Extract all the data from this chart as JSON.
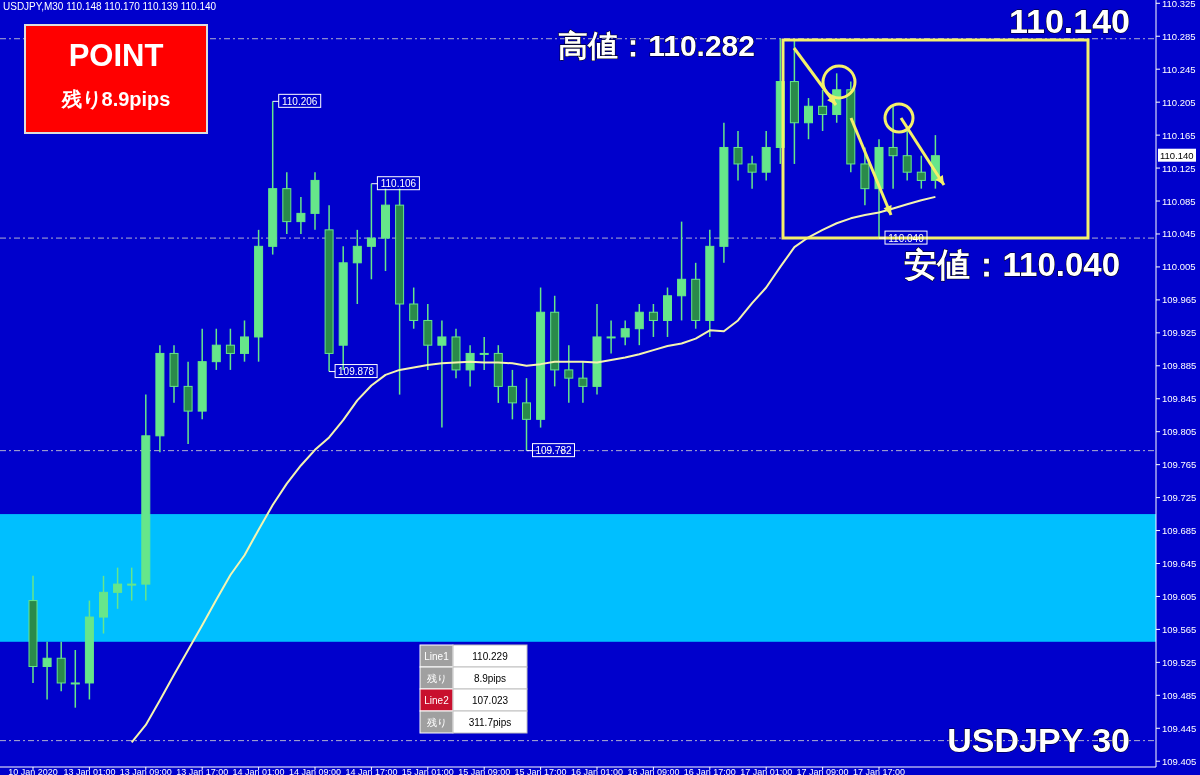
{
  "chart_data": {
    "type": "candlestick",
    "title": "USDJPY,M30  110.148 110.170 110.139 110.140",
    "categories": [
      "10 Jan 2020",
      null,
      null,
      null,
      "13 Jan 01:00",
      null,
      null,
      null,
      "13 Jan 09:00",
      null,
      null,
      null,
      "13 Jan 17:00",
      null,
      null,
      null,
      "14 Jan 01:00",
      null,
      null,
      null,
      "14 Jan 09:00",
      null,
      null,
      null,
      "14 Jan 17:00",
      null,
      null,
      null,
      "15 Jan 01:00",
      null,
      null,
      null,
      "15 Jan 09:00",
      null,
      null,
      null,
      "15 Jan 17:00",
      null,
      null,
      null,
      "16 Jan 01:00",
      null,
      null,
      null,
      "16 Jan 09:00",
      null,
      null,
      null,
      "16 Jan 17:00",
      null,
      null,
      null,
      "17 Jan 01:00",
      null,
      null,
      null,
      "17 Jan 09:00",
      null,
      null,
      null,
      "17 Jan 17:00",
      null,
      null,
      null,
      null
    ],
    "series": [
      {
        "color": "#66e68a",
        "ohlc": [
          [
            109.6,
            109.63,
            109.5,
            109.52
          ],
          [
            109.52,
            109.55,
            109.48,
            109.53
          ],
          [
            109.53,
            109.55,
            109.49,
            109.5
          ],
          [
            109.5,
            109.54,
            109.47,
            109.5
          ],
          [
            109.5,
            109.6,
            109.48,
            109.58
          ],
          [
            109.58,
            109.63,
            109.56,
            109.61
          ],
          [
            109.61,
            109.64,
            109.59,
            109.62
          ],
          [
            109.62,
            109.64,
            109.6,
            109.62
          ],
          [
            109.62,
            109.85,
            109.6,
            109.8
          ],
          [
            109.8,
            109.91,
            109.78,
            109.9
          ],
          [
            109.9,
            109.91,
            109.84,
            109.86
          ],
          [
            109.86,
            109.89,
            109.79,
            109.83
          ],
          [
            109.83,
            109.93,
            109.82,
            109.89
          ],
          [
            109.89,
            109.93,
            109.88,
            109.91
          ],
          [
            109.91,
            109.93,
            109.88,
            109.9
          ],
          [
            109.9,
            109.94,
            109.89,
            109.92
          ],
          [
            109.92,
            110.05,
            109.89,
            110.03
          ],
          [
            110.03,
            110.206,
            110.02,
            110.1
          ],
          [
            110.1,
            110.12,
            110.045,
            110.06
          ],
          [
            110.06,
            110.09,
            110.045,
            110.07
          ],
          [
            110.07,
            110.12,
            110.05,
            110.11
          ],
          [
            110.05,
            110.08,
            109.878,
            109.9
          ],
          [
            109.91,
            110.03,
            109.88,
            110.01
          ],
          [
            110.01,
            110.05,
            109.96,
            110.03
          ],
          [
            110.03,
            110.106,
            109.99,
            110.04
          ],
          [
            110.04,
            110.1,
            110.0,
            110.08
          ],
          [
            110.08,
            110.1,
            109.85,
            109.96
          ],
          [
            109.96,
            109.98,
            109.93,
            109.94
          ],
          [
            109.94,
            109.96,
            109.88,
            109.91
          ],
          [
            109.91,
            109.94,
            109.81,
            109.92
          ],
          [
            109.92,
            109.93,
            109.87,
            109.88
          ],
          [
            109.88,
            109.91,
            109.86,
            109.9
          ],
          [
            109.9,
            109.92,
            109.88,
            109.9
          ],
          [
            109.9,
            109.91,
            109.84,
            109.86
          ],
          [
            109.86,
            109.88,
            109.82,
            109.84
          ],
          [
            109.84,
            109.87,
            109.782,
            109.82
          ],
          [
            109.82,
            109.98,
            109.81,
            109.95
          ],
          [
            109.95,
            109.97,
            109.86,
            109.88
          ],
          [
            109.88,
            109.91,
            109.84,
            109.87
          ],
          [
            109.87,
            109.89,
            109.84,
            109.86
          ],
          [
            109.86,
            109.96,
            109.85,
            109.92
          ],
          [
            109.92,
            109.94,
            109.9,
            109.92
          ],
          [
            109.92,
            109.94,
            109.91,
            109.93
          ],
          [
            109.93,
            109.96,
            109.91,
            109.95
          ],
          [
            109.95,
            109.96,
            109.92,
            109.94
          ],
          [
            109.94,
            109.98,
            109.92,
            109.97
          ],
          [
            109.97,
            110.06,
            109.94,
            109.99
          ],
          [
            109.99,
            110.01,
            109.93,
            109.94
          ],
          [
            109.94,
            110.05,
            109.92,
            110.03
          ],
          [
            110.03,
            110.18,
            110.01,
            110.15
          ],
          [
            110.15,
            110.17,
            110.11,
            110.13
          ],
          [
            110.13,
            110.14,
            110.1,
            110.12
          ],
          [
            110.12,
            110.17,
            110.11,
            110.15
          ],
          [
            110.15,
            110.282,
            110.13,
            110.23
          ],
          [
            110.23,
            110.28,
            110.13,
            110.18
          ],
          [
            110.18,
            110.21,
            110.16,
            110.2
          ],
          [
            110.2,
            110.22,
            110.17,
            110.19
          ],
          [
            110.19,
            110.24,
            110.18,
            110.22
          ],
          [
            110.22,
            110.23,
            110.12,
            110.13
          ],
          [
            110.13,
            110.15,
            110.08,
            110.1
          ],
          [
            110.1,
            110.16,
            110.04,
            110.15
          ],
          [
            110.15,
            110.2,
            110.1,
            110.14
          ],
          [
            110.14,
            110.17,
            110.11,
            110.12
          ],
          [
            110.12,
            110.14,
            110.1,
            110.11
          ],
          [
            110.11,
            110.165,
            110.1,
            110.14
          ]
        ]
      },
      {
        "type": "line",
        "color": "#f4f4b0",
        "values": [
          null,
          null,
          null,
          null,
          null,
          null,
          null,
          109.428,
          109.449,
          109.479,
          109.51,
          109.54,
          109.57,
          109.601,
          109.631,
          109.655,
          109.686,
          109.716,
          109.742,
          109.764,
          109.783,
          109.798,
          109.819,
          109.843,
          109.861,
          109.874,
          109.88,
          109.883,
          109.886,
          109.888,
          109.889,
          109.89,
          109.889,
          109.889,
          109.888,
          109.885,
          109.887,
          109.89,
          109.89,
          109.89,
          109.889,
          109.892,
          109.895,
          109.899,
          109.904,
          109.909,
          109.912,
          109.918,
          109.928,
          109.927,
          109.94,
          109.961,
          109.98,
          110.005,
          110.029,
          110.041,
          110.05,
          110.058,
          110.064,
          110.068,
          110.071,
          110.076,
          110.081,
          110.086,
          110.09
        ]
      }
    ],
    "ylim": [
      109.398,
      110.329
    ],
    "yticks": [
      109.405,
      109.445,
      109.485,
      109.525,
      109.565,
      109.605,
      109.645,
      109.685,
      109.725,
      109.765,
      109.805,
      109.845,
      109.885,
      109.925,
      109.965,
      110.005,
      110.045,
      110.085,
      110.125,
      110.165,
      110.205,
      110.245,
      110.285,
      110.325
    ],
    "bands": [
      {
        "axis": "y",
        "from": 109.55,
        "to": 109.705,
        "color": "#00bfff"
      }
    ],
    "ref_lines": [
      {
        "axis": "y",
        "value": 110.282,
        "line_style": "dashed",
        "color": "#b0b0d0"
      },
      {
        "axis": "y",
        "value": 110.04,
        "line_style": "dashed",
        "color": "#b0b0d0"
      },
      {
        "axis": "y",
        "value": 109.782,
        "line_style": "dashed",
        "color": "#b0b0d0"
      },
      {
        "axis": "y",
        "value": 109.43,
        "line_style": "dashed",
        "color": "#b0b0d0"
      }
    ],
    "annotations": [
      "高値：110.282",
      "安値：110.040",
      "110.140",
      "USDJPY 30",
      "POINT",
      "残り8.9pips",
      "Line1",
      "110.229",
      "残り",
      "8.9pips",
      "Line2",
      "107.023",
      "残り",
      "311.7pips",
      {
        "text": "110.206",
        "y": 110.206
      },
      {
        "text": "110.106",
        "y": 110.106
      },
      {
        "text": "109.878",
        "y": 109.878
      },
      {
        "text": "109.782",
        "y": 109.782
      },
      {
        "text": "110.040",
        "y": 110.04
      },
      "110.140"
    ],
    "legend": false,
    "grid": false
  }
}
